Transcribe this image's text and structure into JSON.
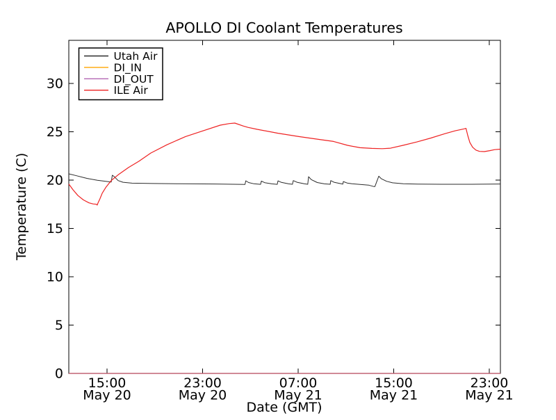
{
  "figure": {
    "title": "APOLLO DI Coolant Temperatures",
    "xlabel": "Date (GMT)",
    "ylabel": "Temperature (C)"
  },
  "chart_data": {
    "type": "line",
    "title": "APOLLO DI Coolant Temperatures",
    "xlabel": "Date (GMT)",
    "ylabel": "Temperature (C)",
    "x_unit": "hours since May 20 00:00 GMT",
    "xlim": [
      11.8,
      47.93
    ],
    "ylim": [
      0,
      34.46
    ],
    "grid": false,
    "legend_position": "upper left",
    "tick_style": "inward, all four spines, unlabeled on top/right",
    "x_ticks": [
      {
        "hour": 15,
        "time": "15:00",
        "date": "May 20"
      },
      {
        "hour": 23,
        "time": "23:00",
        "date": "May 20"
      },
      {
        "hour": 31,
        "time": "07:00",
        "date": "May 21"
      },
      {
        "hour": 39,
        "time": "15:00",
        "date": "May 21"
      },
      {
        "hour": 47,
        "time": "23:00",
        "date": "May 21"
      }
    ],
    "y_ticks": [
      0,
      5,
      10,
      15,
      20,
      25,
      30
    ],
    "series": [
      {
        "name": "Utah Air",
        "color": "#2b2b2b",
        "width": 1,
        "opacity": 1,
        "points": [
          [
            11.8,
            20.65
          ],
          [
            12.44,
            20.45
          ],
          [
            13.31,
            20.18
          ],
          [
            14.19,
            19.98
          ],
          [
            15.06,
            19.85
          ],
          [
            15.35,
            19.8
          ],
          [
            15.44,
            20.5
          ],
          [
            15.58,
            20.38
          ],
          [
            15.93,
            19.95
          ],
          [
            16.34,
            19.78
          ],
          [
            17.09,
            19.68
          ],
          [
            18.84,
            19.65
          ],
          [
            21.17,
            19.62
          ],
          [
            24.07,
            19.6
          ],
          [
            26.11,
            19.56
          ],
          [
            26.55,
            19.55
          ],
          [
            26.62,
            19.93
          ],
          [
            26.85,
            19.75
          ],
          [
            27.3,
            19.62
          ],
          [
            27.85,
            19.56
          ],
          [
            27.92,
            19.9
          ],
          [
            28.2,
            19.73
          ],
          [
            28.8,
            19.61
          ],
          [
            29.25,
            19.56
          ],
          [
            29.31,
            19.92
          ],
          [
            29.6,
            19.76
          ],
          [
            30.2,
            19.61
          ],
          [
            30.52,
            19.57
          ],
          [
            30.59,
            19.95
          ],
          [
            30.9,
            19.78
          ],
          [
            31.5,
            19.62
          ],
          [
            31.8,
            19.57
          ],
          [
            31.87,
            20.35
          ],
          [
            32.1,
            20.05
          ],
          [
            32.6,
            19.75
          ],
          [
            33.2,
            19.61
          ],
          [
            33.68,
            19.57
          ],
          [
            33.73,
            19.95
          ],
          [
            34.0,
            19.78
          ],
          [
            34.6,
            19.62
          ],
          [
            34.74,
            19.58
          ],
          [
            34.78,
            19.85
          ],
          [
            35.1,
            19.7
          ],
          [
            35.5,
            19.62
          ],
          [
            36.1,
            19.56
          ],
          [
            36.9,
            19.48
          ],
          [
            37.34,
            19.33
          ],
          [
            37.42,
            19.33
          ],
          [
            37.75,
            20.4
          ],
          [
            37.95,
            20.15
          ],
          [
            38.4,
            19.88
          ],
          [
            38.9,
            19.72
          ],
          [
            39.8,
            19.62
          ],
          [
            41.0,
            19.58
          ],
          [
            43.0,
            19.57
          ],
          [
            45.5,
            19.57
          ],
          [
            47.93,
            19.6
          ]
        ]
      },
      {
        "name": "DI_IN",
        "color": "#ffa500",
        "width": 1.2,
        "opacity": 1,
        "points": [
          [
            11.8,
            0
          ],
          [
            47.93,
            0
          ]
        ]
      },
      {
        "name": "DI_OUT",
        "color": "#993399",
        "width": 1.2,
        "opacity": 0.75,
        "points": [
          [
            11.8,
            0
          ],
          [
            47.93,
            0
          ]
        ]
      },
      {
        "name": "ILE Air",
        "color": "#ee2222",
        "width": 1.2,
        "opacity": 1,
        "points": [
          [
            11.8,
            19.6
          ],
          [
            12.15,
            19.0
          ],
          [
            12.56,
            18.4
          ],
          [
            13.02,
            17.95
          ],
          [
            13.49,
            17.65
          ],
          [
            13.84,
            17.53
          ],
          [
            14.1,
            17.5
          ],
          [
            14.18,
            17.42
          ],
          [
            14.24,
            17.62
          ],
          [
            14.4,
            18.05
          ],
          [
            14.6,
            18.65
          ],
          [
            14.9,
            19.25
          ],
          [
            15.35,
            19.95
          ],
          [
            15.93,
            20.55
          ],
          [
            16.8,
            21.3
          ],
          [
            17.67,
            21.95
          ],
          [
            18.66,
            22.8
          ],
          [
            20.0,
            23.65
          ],
          [
            21.57,
            24.5
          ],
          [
            22.91,
            25.05
          ],
          [
            24.48,
            25.68
          ],
          [
            25.24,
            25.85
          ],
          [
            25.7,
            25.9
          ],
          [
            26.4,
            25.6
          ],
          [
            26.8,
            25.45
          ],
          [
            27.57,
            25.25
          ],
          [
            29.31,
            24.85
          ],
          [
            31.06,
            24.5
          ],
          [
            32.8,
            24.2
          ],
          [
            33.96,
            24.0
          ],
          [
            35.13,
            23.6
          ],
          [
            36.17,
            23.35
          ],
          [
            37.16,
            23.28
          ],
          [
            38.04,
            23.25
          ],
          [
            38.73,
            23.3
          ],
          [
            39.78,
            23.6
          ],
          [
            40.95,
            23.95
          ],
          [
            42.11,
            24.35
          ],
          [
            43.27,
            24.8
          ],
          [
            44.15,
            25.1
          ],
          [
            44.9,
            25.3
          ],
          [
            45.05,
            25.35
          ],
          [
            45.2,
            24.6
          ],
          [
            45.37,
            23.9
          ],
          [
            45.6,
            23.4
          ],
          [
            45.89,
            23.1
          ],
          [
            46.18,
            22.97
          ],
          [
            46.58,
            22.95
          ],
          [
            47.05,
            23.05
          ],
          [
            47.45,
            23.15
          ],
          [
            47.93,
            23.2
          ]
        ]
      }
    ]
  }
}
